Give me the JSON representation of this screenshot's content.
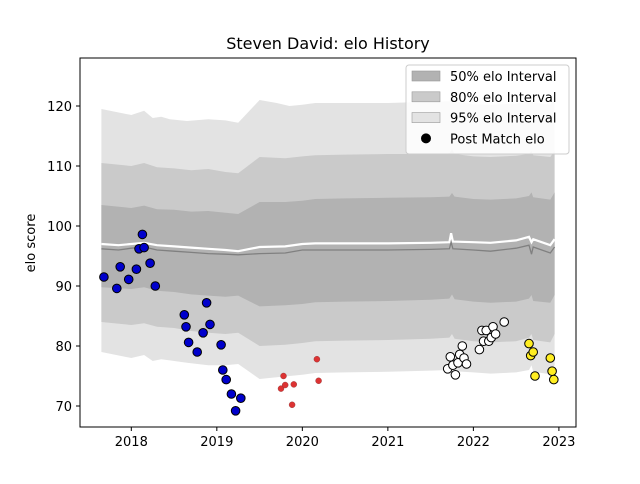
{
  "chart_data": {
    "type": "scatter",
    "title": "Steven David: elo History",
    "xlabel": "",
    "ylabel": "elo score",
    "xlim": [
      2017.4,
      2023.2
    ],
    "ylim": [
      66.5,
      128
    ],
    "x_ticks": [
      2018,
      2019,
      2020,
      2021,
      2022,
      2023
    ],
    "x_tick_labels": [
      "2018",
      "2019",
      "2020",
      "2021",
      "2022",
      "2023"
    ],
    "y_ticks": [
      70,
      80,
      90,
      100,
      110,
      120
    ],
    "y_tick_labels": [
      "70",
      "80",
      "90",
      "100",
      "110",
      "120"
    ],
    "grid": false,
    "legend": {
      "placement": "top-right",
      "entries": [
        {
          "label": "50% elo Interval",
          "color": "#b2b2b2",
          "kind": "patch"
        },
        {
          "label": "80% elo Interval",
          "color": "#cacaca",
          "kind": "patch"
        },
        {
          "label": "95% elo Interval",
          "color": "#e3e3e3",
          "kind": "patch"
        },
        {
          "label": "Post Match elo",
          "color": "#000000",
          "kind": "marker"
        }
      ]
    },
    "bands": [
      {
        "name": "95% elo Interval",
        "color": "#e3e3e3",
        "x": [
          2017.65,
          2018.0,
          2018.15,
          2018.25,
          2018.35,
          2018.45,
          2018.65,
          2018.9,
          2019.1,
          2019.25,
          2019.5,
          2019.7,
          2019.85,
          2020.0,
          2020.15,
          2020.5,
          2021.0,
          2021.5,
          2021.72,
          2021.75,
          2021.78,
          2022.0,
          2022.2,
          2022.5,
          2022.65,
          2022.68,
          2022.7,
          2022.9,
          2022.95
        ],
        "upper": [
          119.5,
          118.5,
          119.2,
          118.0,
          118.2,
          117.8,
          117.5,
          117.8,
          117.6,
          117.2,
          121.0,
          120.5,
          120.0,
          120.2,
          120.5,
          120.5,
          120.5,
          120.7,
          120.8,
          122.0,
          120.8,
          120.3,
          120.2,
          120.4,
          120.8,
          121.5,
          120.6,
          120.2,
          121.5
        ],
        "lower": [
          79.0,
          78.0,
          78.5,
          77.5,
          77.8,
          77.6,
          77.2,
          76.8,
          76.8,
          77.0,
          74.5,
          74.8,
          75.0,
          75.2,
          75.5,
          75.6,
          75.7,
          75.9,
          76.0,
          76.5,
          75.8,
          75.6,
          75.4,
          75.6,
          76.0,
          76.8,
          75.7,
          75.3,
          76.8
        ]
      },
      {
        "name": "80% elo Interval",
        "color": "#cacaca",
        "x": [
          2017.65,
          2018.0,
          2018.15,
          2018.3,
          2018.5,
          2018.7,
          2018.9,
          2019.1,
          2019.25,
          2019.5,
          2019.8,
          2020.0,
          2020.15,
          2020.5,
          2021.0,
          2021.5,
          2021.72,
          2021.75,
          2021.78,
          2022.0,
          2022.2,
          2022.5,
          2022.65,
          2022.68,
          2022.7,
          2022.9,
          2022.95
        ],
        "upper": [
          110.5,
          110.0,
          110.5,
          109.8,
          109.6,
          109.3,
          109.5,
          109.0,
          108.8,
          111.5,
          111.3,
          111.6,
          111.8,
          111.9,
          112.0,
          112.0,
          112.1,
          112.8,
          112.0,
          111.6,
          111.5,
          111.7,
          112.0,
          112.5,
          111.8,
          111.5,
          112.5
        ],
        "lower": [
          84.0,
          83.5,
          83.8,
          83.2,
          83.0,
          82.5,
          82.2,
          82.0,
          82.2,
          80.0,
          80.2,
          80.5,
          80.8,
          80.9,
          81.0,
          81.2,
          81.4,
          82.0,
          81.2,
          80.8,
          80.6,
          80.8,
          81.4,
          82.0,
          81.0,
          80.6,
          82.0
        ]
      },
      {
        "name": "50% elo Interval",
        "color": "#b2b2b2",
        "x": [
          2017.65,
          2018.0,
          2018.15,
          2018.3,
          2018.5,
          2018.7,
          2018.9,
          2019.1,
          2019.25,
          2019.5,
          2019.8,
          2020.0,
          2020.15,
          2020.5,
          2021.0,
          2021.5,
          2021.72,
          2021.75,
          2021.78,
          2022.0,
          2022.2,
          2022.5,
          2022.65,
          2022.68,
          2022.7,
          2022.9,
          2022.95
        ],
        "upper": [
          103.5,
          103.0,
          103.4,
          102.8,
          102.7,
          102.4,
          102.5,
          102.2,
          102.0,
          104.0,
          104.0,
          104.2,
          104.5,
          104.6,
          104.7,
          104.8,
          104.9,
          105.5,
          104.9,
          104.5,
          104.4,
          104.6,
          105.0,
          105.6,
          104.8,
          104.4,
          105.6
        ],
        "lower": [
          89.8,
          89.5,
          89.8,
          89.2,
          89.0,
          88.6,
          88.4,
          88.2,
          88.4,
          86.6,
          86.8,
          87.0,
          87.3,
          87.4,
          87.5,
          87.7,
          87.9,
          88.6,
          87.8,
          87.4,
          87.2,
          87.4,
          87.9,
          88.5,
          87.5,
          87.2,
          88.5
        ]
      }
    ],
    "lines": [
      {
        "color": "#ffffff",
        "x": [
          2017.65,
          2017.85,
          2018.0,
          2018.15,
          2018.3,
          2018.5,
          2018.7,
          2018.9,
          2019.1,
          2019.25,
          2019.5,
          2019.8,
          2020.0,
          2020.15,
          2020.5,
          2021.0,
          2021.5,
          2021.72,
          2021.74,
          2021.76,
          2022.0,
          2022.2,
          2022.5,
          2022.65,
          2022.68,
          2022.7,
          2022.9,
          2022.95
        ],
        "y": [
          97.0,
          96.8,
          97.0,
          97.2,
          96.8,
          96.6,
          96.4,
          96.2,
          96.0,
          95.8,
          96.5,
          96.6,
          97.0,
          97.1,
          97.1,
          97.1,
          97.2,
          97.3,
          98.8,
          97.4,
          97.3,
          97.2,
          97.6,
          98.2,
          97.3,
          97.8,
          96.8,
          97.8
        ]
      },
      {
        "color": "#808080",
        "x": [
          2017.65,
          2017.85,
          2018.0,
          2018.15,
          2018.3,
          2018.5,
          2018.7,
          2018.9,
          2019.1,
          2019.25,
          2019.5,
          2019.8,
          2020.0,
          2020.15,
          2020.5,
          2021.0,
          2021.5,
          2021.72,
          2021.74,
          2021.76,
          2022.0,
          2022.2,
          2022.5,
          2022.65,
          2022.68,
          2022.7,
          2022.9,
          2022.95
        ],
        "y": [
          96.2,
          96.0,
          96.3,
          96.5,
          96.0,
          95.8,
          95.6,
          95.4,
          95.3,
          95.2,
          95.4,
          95.5,
          96.0,
          96.0,
          96.0,
          96.0,
          96.1,
          96.2,
          97.3,
          96.2,
          96.0,
          95.8,
          96.3,
          96.8,
          95.3,
          96.5,
          95.5,
          96.5
        ]
      }
    ],
    "scatter_series": [
      {
        "color": "#0000cc",
        "size": "large",
        "points": [
          [
            2017.68,
            91.5
          ],
          [
            2017.83,
            89.6
          ],
          [
            2017.87,
            93.2
          ],
          [
            2017.97,
            91.1
          ],
          [
            2018.06,
            92.8
          ],
          [
            2018.09,
            96.2
          ],
          [
            2018.13,
            98.6
          ],
          [
            2018.15,
            96.4
          ],
          [
            2018.22,
            93.8
          ],
          [
            2018.28,
            90.0
          ],
          [
            2018.62,
            85.2
          ],
          [
            2018.64,
            83.2
          ],
          [
            2018.67,
            80.6
          ],
          [
            2018.77,
            79.0
          ],
          [
            2018.84,
            82.2
          ],
          [
            2018.88,
            87.2
          ],
          [
            2018.92,
            83.6
          ],
          [
            2019.05,
            80.2
          ],
          [
            2019.07,
            76.0
          ],
          [
            2019.11,
            74.4
          ],
          [
            2019.17,
            72.0
          ],
          [
            2019.22,
            69.2
          ],
          [
            2019.28,
            71.3
          ]
        ]
      },
      {
        "color": "#dd3333",
        "size": "small",
        "points": [
          [
            2019.75,
            72.9
          ],
          [
            2019.78,
            75.0
          ],
          [
            2019.8,
            73.5
          ],
          [
            2019.88,
            70.2
          ],
          [
            2019.9,
            73.6
          ],
          [
            2020.17,
            77.8
          ],
          [
            2020.19,
            74.2
          ]
        ]
      },
      {
        "color": "#ffffff",
        "size": "large",
        "points": [
          [
            2021.7,
            76.2
          ],
          [
            2021.73,
            78.2
          ],
          [
            2021.76,
            76.8
          ],
          [
            2021.79,
            75.2
          ],
          [
            2021.82,
            77.2
          ],
          [
            2021.84,
            78.6
          ],
          [
            2021.87,
            80.0
          ],
          [
            2021.89,
            78.0
          ],
          [
            2021.92,
            77.0
          ],
          [
            2022.07,
            79.4
          ],
          [
            2022.1,
            82.6
          ],
          [
            2022.12,
            80.8
          ],
          [
            2022.15,
            82.6
          ],
          [
            2022.18,
            80.8
          ],
          [
            2022.21,
            81.4
          ],
          [
            2022.23,
            83.2
          ],
          [
            2022.26,
            82.0
          ],
          [
            2022.36,
            84.0
          ]
        ]
      },
      {
        "color": "#ffee22",
        "size": "large",
        "points": [
          [
            2022.65,
            80.4
          ],
          [
            2022.67,
            78.4
          ],
          [
            2022.7,
            79.0
          ],
          [
            2022.72,
            75.0
          ],
          [
            2022.9,
            78.0
          ],
          [
            2022.92,
            75.8
          ],
          [
            2022.94,
            74.4
          ]
        ]
      }
    ]
  }
}
